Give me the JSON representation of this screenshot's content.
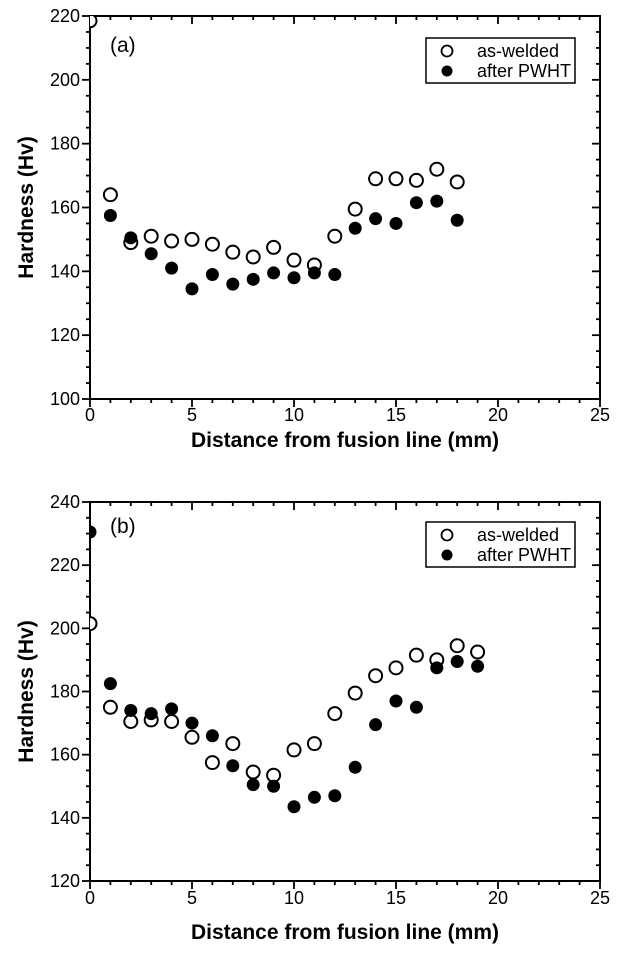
{
  "figure": {
    "background": "#ffffff",
    "foreground": "#000000"
  },
  "chart_data": [
    {
      "type": "scatter",
      "panel_label": "(a)",
      "xlabel": "Distance from fusion line (mm)",
      "ylabel": "Hardness (Hv)",
      "xlim": [
        0,
        25
      ],
      "ylim": [
        100,
        220
      ],
      "x_ticks": [
        0,
        5,
        10,
        15,
        20,
        25
      ],
      "y_ticks": [
        100,
        120,
        140,
        160,
        180,
        200,
        220
      ],
      "x_minor_step": 1,
      "y_minor_step": 5,
      "grid": false,
      "legend_position": "top-right",
      "legend": [
        {
          "label": "as-welded",
          "marker": "open-circle"
        },
        {
          "label": "after PWHT",
          "marker": "filled-circle"
        }
      ],
      "series": [
        {
          "name": "as-welded",
          "marker": "open-circle",
          "points": [
            [
              0,
              218.5
            ],
            [
              1,
              164
            ],
            [
              2,
              149
            ],
            [
              3,
              151
            ],
            [
              4,
              149.5
            ],
            [
              5,
              150
            ],
            [
              6,
              148.5
            ],
            [
              7,
              146
            ],
            [
              8,
              144.5
            ],
            [
              9,
              147.5
            ],
            [
              10,
              143.5
            ],
            [
              11,
              142
            ],
            [
              12,
              151
            ],
            [
              13,
              159.5
            ],
            [
              14,
              169
            ],
            [
              15,
              169
            ],
            [
              16,
              168.5
            ],
            [
              17,
              172
            ],
            [
              18,
              168
            ]
          ]
        },
        {
          "name": "after PWHT",
          "marker": "filled-circle",
          "points": [
            [
              1,
              157.5
            ],
            [
              2,
              150.5
            ],
            [
              3,
              145.5
            ],
            [
              4,
              141
            ],
            [
              5,
              134.5
            ],
            [
              6,
              139
            ],
            [
              7,
              136
            ],
            [
              8,
              137.5
            ],
            [
              9,
              139.5
            ],
            [
              10,
              138
            ],
            [
              11,
              139.5
            ],
            [
              12,
              139
            ],
            [
              13,
              153.5
            ],
            [
              14,
              156.5
            ],
            [
              15,
              155
            ],
            [
              16,
              161.5
            ],
            [
              17,
              162
            ],
            [
              18,
              156
            ]
          ]
        }
      ]
    },
    {
      "type": "scatter",
      "panel_label": "(b)",
      "xlabel": "Distance from fusion line (mm)",
      "ylabel": "Hardness (Hv)",
      "xlim": [
        0,
        25
      ],
      "ylim": [
        120,
        240
      ],
      "x_ticks": [
        0,
        5,
        10,
        15,
        20,
        25
      ],
      "y_ticks": [
        120,
        140,
        160,
        180,
        200,
        220,
        240
      ],
      "x_minor_step": 1,
      "y_minor_step": 5,
      "grid": false,
      "legend_position": "top-right",
      "legend": [
        {
          "label": "as-welded",
          "marker": "open-circle"
        },
        {
          "label": "after PWHT",
          "marker": "filled-circle"
        }
      ],
      "series": [
        {
          "name": "as-welded",
          "marker": "open-circle",
          "points": [
            [
              0,
              201.5
            ],
            [
              1,
              175
            ],
            [
              2,
              170.5
            ],
            [
              3,
              171
            ],
            [
              4,
              170.5
            ],
            [
              5,
              165.5
            ],
            [
              6,
              157.5
            ],
            [
              7,
              163.5
            ],
            [
              8,
              154.5
            ],
            [
              9,
              153.5
            ],
            [
              10,
              161.5
            ],
            [
              11,
              163.5
            ],
            [
              12,
              173
            ],
            [
              13,
              179.5
            ],
            [
              14,
              185
            ],
            [
              15,
              187.5
            ],
            [
              16,
              191.5
            ],
            [
              17,
              190
            ],
            [
              18,
              194.5
            ],
            [
              19,
              192.5
            ]
          ]
        },
        {
          "name": "after PWHT",
          "marker": "filled-circle",
          "points": [
            [
              0,
              230.5
            ],
            [
              1,
              182.5
            ],
            [
              2,
              174
            ],
            [
              3,
              173
            ],
            [
              4,
              174.5
            ],
            [
              5,
              170
            ],
            [
              6,
              166
            ],
            [
              7,
              156.5
            ],
            [
              8,
              150.5
            ],
            [
              9,
              150
            ],
            [
              10,
              143.5
            ],
            [
              11,
              146.5
            ],
            [
              12,
              147
            ],
            [
              13,
              156
            ],
            [
              14,
              169.5
            ],
            [
              15,
              177
            ],
            [
              16,
              175
            ],
            [
              17,
              187.5
            ],
            [
              18,
              189.5
            ],
            [
              19,
              188
            ]
          ]
        }
      ]
    }
  ]
}
